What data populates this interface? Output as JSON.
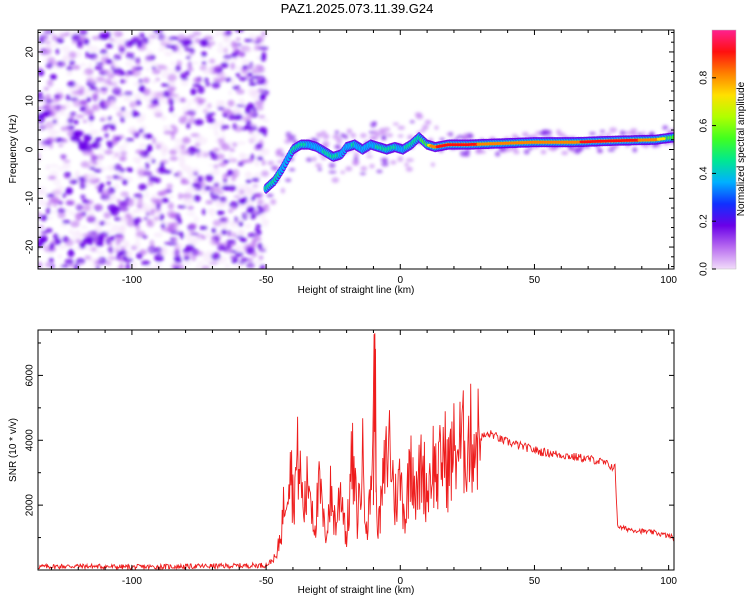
{
  "colors": {
    "snr_line": "#ee1c1c",
    "spec_scatter": "#7a2be0",
    "colormap": [
      "#f2dcfa",
      "#b86cf0",
      "#6a00e8",
      "#1030ff",
      "#00b0ff",
      "#00e890",
      "#40ff20",
      "#b0ff00",
      "#ffe000",
      "#ff8000",
      "#ff1010",
      "#ff2090"
    ]
  },
  "chart_data": [
    {
      "type": "heatmap",
      "title": "PAZ1.2025.073.11.39.G24",
      "xlabel": "Height of straight line (km)",
      "ylabel": "Frequency (Hz)",
      "xlim": [
        -135,
        102
      ],
      "ylim": [
        -24.5,
        24.5
      ],
      "xticks": [
        -100,
        -50,
        0,
        50,
        100
      ],
      "yticks": [
        -20,
        -10,
        0,
        10,
        20
      ],
      "colorbar": {
        "label": "Normalized spectral amplitude",
        "range": [
          0,
          1
        ],
        "ticks": [
          0.0,
          0.2,
          0.4,
          0.6,
          0.8
        ]
      },
      "noise_region_x": [
        -135,
        -50
      ],
      "ridge": {
        "x": [
          -50,
          -47,
          -44,
          -42,
          -40,
          -37,
          -34,
          -31,
          -28,
          -25,
          -22,
          -20,
          -17,
          -14,
          -11,
          -8,
          -5,
          -2,
          1,
          4,
          7,
          10,
          13,
          18,
          25,
          35,
          50,
          65,
          80,
          95,
          102
        ],
        "y": [
          -8,
          -6.5,
          -4,
          -2,
          0,
          1,
          1,
          0.5,
          -0.5,
          -1.5,
          -1,
          0.5,
          1,
          0,
          1,
          0.5,
          0,
          0.5,
          0,
          1,
          2.5,
          1,
          0.5,
          1,
          1,
          1.2,
          1.5,
          1.5,
          1.8,
          2,
          2.5
        ],
        "amplitude": [
          0.5,
          0.45,
          0.4,
          0.4,
          0.42,
          0.45,
          0.4,
          0.38,
          0.42,
          0.45,
          0.4,
          0.4,
          0.42,
          0.38,
          0.4,
          0.42,
          0.45,
          0.42,
          0.4,
          0.45,
          0.5,
          0.6,
          0.75,
          0.85,
          0.8,
          0.7,
          0.68,
          0.75,
          0.85,
          0.7,
          0.55
        ]
      }
    },
    {
      "type": "line",
      "xlabel": "Height of straight line (km)",
      "ylabel": "SNR (10 * v/v)",
      "xlim": [
        -135,
        102
      ],
      "ylim": [
        0,
        7400
      ],
      "xticks": [
        -100,
        -50,
        0,
        50,
        100
      ],
      "yticks": [
        2000,
        4000,
        6000
      ],
      "series": [
        {
          "x": [
            -135,
            -120,
            -100,
            -80,
            -60,
            -50,
            -46,
            -44,
            -42,
            -41,
            -40,
            -38,
            -36,
            -34,
            -32,
            -30,
            -28,
            -26,
            -24,
            -22,
            -20,
            -18,
            -16,
            -14,
            -12,
            -10,
            -9.5,
            -9,
            -8,
            -6,
            -4,
            -2,
            0,
            2,
            4,
            6,
            8,
            10,
            12,
            14,
            16,
            18,
            20,
            22,
            24,
            26,
            28,
            30,
            32,
            34,
            36,
            38,
            40,
            44,
            48,
            52,
            56,
            60,
            64,
            68,
            72,
            76,
            80,
            81,
            82,
            86,
            90,
            95,
            100,
            102
          ],
          "y": [
            100,
            120,
            90,
            110,
            130,
            150,
            400,
            1500,
            3000,
            3900,
            2200,
            3500,
            1800,
            2900,
            1400,
            2500,
            1000,
            2300,
            1400,
            2600,
            900,
            3400,
            1600,
            3300,
            1200,
            4400,
            7300,
            2500,
            1300,
            2900,
            4000,
            2100,
            2800,
            1600,
            3900,
            2200,
            3300,
            2400,
            3400,
            2800,
            3700,
            3100,
            3700,
            3800,
            3900,
            4000,
            4050,
            4100,
            4150,
            4200,
            4100,
            4000,
            3950,
            3850,
            3750,
            3650,
            3600,
            3550,
            3500,
            3450,
            3400,
            3300,
            3150,
            1400,
            1300,
            1250,
            1200,
            1150,
            1050,
            1000
          ]
        }
      ]
    }
  ]
}
